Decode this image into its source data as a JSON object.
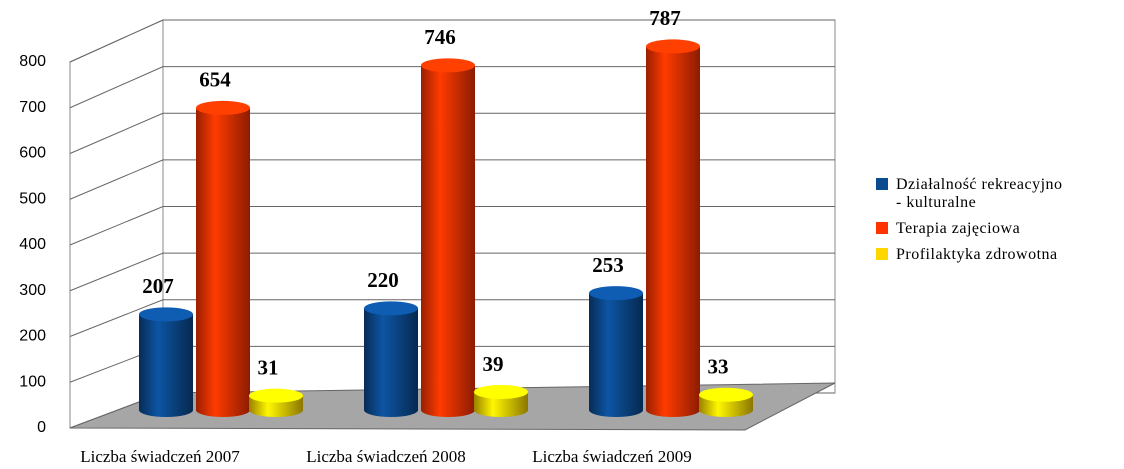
{
  "chart_data": {
    "type": "bar3d",
    "categories": [
      "Liczba świadczeń 2007",
      "Liczba świadczeń 2008",
      "Liczba świadczeń 2009"
    ],
    "series": [
      {
        "name": "Działalność rekreacyjno - kulturalne",
        "color": "#0b4a8f",
        "values": [
          207,
          220,
          253
        ]
      },
      {
        "name": "Terapia zajęciowa",
        "color": "#ff3300",
        "values": [
          654,
          746,
          787
        ]
      },
      {
        "name": "Profilaktyka zdrowotna",
        "color": "#ffd700",
        "values": [
          31,
          39,
          33
        ]
      }
    ],
    "ylim": [
      0,
      800
    ],
    "yticks": [
      0,
      100,
      200,
      300,
      400,
      500,
      600,
      700,
      800
    ],
    "grid": true,
    "legend": "right"
  }
}
